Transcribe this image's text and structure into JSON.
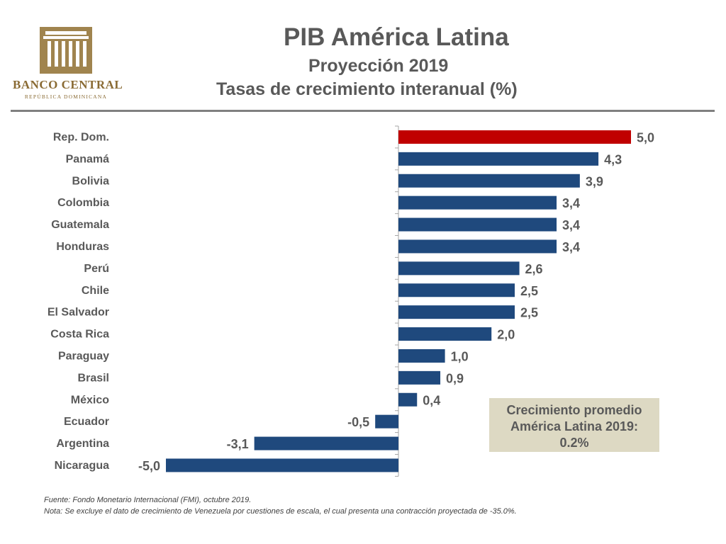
{
  "logo": {
    "name": "BANCO CENTRAL",
    "subtitle": "REPÚBLICA DOMINICANA",
    "color": "#8a6b34"
  },
  "header": {
    "title": "PIB América Latina",
    "subtitle": "Proyección 2019",
    "subtitle2": "Tasas de crecimiento interanual (%)"
  },
  "callout": {
    "line1": "Crecimiento promedio",
    "line2": "América Latina 2019:",
    "line3": "0.2%"
  },
  "footer": {
    "source": "Fuente: Fondo Monetario Internacional (FMI), octubre 2019.",
    "note": "Nota: Se excluye el dato de crecimiento de Venezuela por cuestiones de escala, el cual presenta una contracción proyectada de -35.0%."
  },
  "colors": {
    "highlight": "#c00000",
    "bar": "#1f497d",
    "text": "#595959",
    "axis": "#a6a6a6"
  },
  "chart_data": {
    "type": "bar",
    "orientation": "horizontal",
    "title": "PIB América Latina — Proyección 2019 — Tasas de crecimiento interanual (%)",
    "categories": [
      "Rep. Dom.",
      "Panamá",
      "Bolivia",
      "Colombia",
      "Guatemala",
      "Honduras",
      "Perú",
      "Chile",
      "El Salvador",
      "Costa Rica",
      "Paraguay",
      "Brasil",
      "México",
      "Ecuador",
      "Argentina",
      "Nicaragua"
    ],
    "values": [
      5.0,
      4.3,
      3.9,
      3.4,
      3.4,
      3.4,
      2.6,
      2.5,
      2.5,
      2.0,
      1.0,
      0.9,
      0.4,
      -0.5,
      -3.1,
      -5.0
    ],
    "labels": [
      "5,0",
      "4,3",
      "3,9",
      "3,4",
      "3,4",
      "3,4",
      "2,6",
      "2,5",
      "2,5",
      "2,0",
      "1,0",
      "0,9",
      "0,4",
      "-0,5",
      "-3,1",
      "-5,0"
    ],
    "highlight_category": "Rep. Dom.",
    "xlim": [
      -5,
      5
    ],
    "grid": false,
    "legend": "none"
  }
}
